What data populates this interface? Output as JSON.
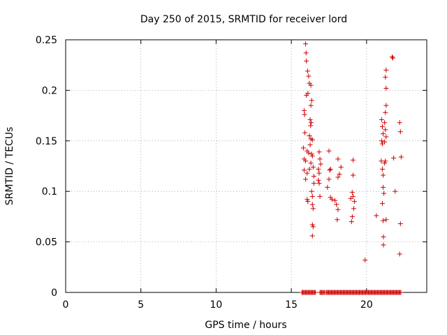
{
  "chart_data": {
    "type": "scatter",
    "title": "Day 250 of 2015, SRMTID for receiver lord",
    "xlabel": "GPS time / hours",
    "ylabel": "SRMTID / TECUs",
    "xlim": [
      0,
      24
    ],
    "ylim": [
      0,
      0.25
    ],
    "xticks": [
      0,
      5,
      10,
      15,
      20
    ],
    "xtick_labels": [
      "0",
      "5",
      "10",
      "15",
      "20"
    ],
    "yticks": [
      0,
      0.05,
      0.1,
      0.15,
      0.2,
      0.25
    ],
    "ytick_labels": [
      "0",
      "0.05",
      "0.1",
      "0.15",
      "0.2",
      "0.25"
    ],
    "grid": true,
    "marker": "+",
    "colors": {
      "series": "#cc0000",
      "axes": "#000000",
      "grid": "#a0a0a0"
    },
    "series": [
      {
        "name": "SRMTID",
        "points": [
          {
            "x": 15.95,
            "y": 0.246
          },
          {
            "x": 15.98,
            "y": 0.237
          },
          {
            "x": 16.0,
            "y": 0.229
          },
          {
            "x": 16.08,
            "y": 0.219
          },
          {
            "x": 16.15,
            "y": 0.214
          },
          {
            "x": 16.2,
            "y": 0.207
          },
          {
            "x": 16.3,
            "y": 0.205
          },
          {
            "x": 16.1,
            "y": 0.197
          },
          {
            "x": 16.0,
            "y": 0.195
          },
          {
            "x": 16.35,
            "y": 0.19
          },
          {
            "x": 16.3,
            "y": 0.185
          },
          {
            "x": 15.85,
            "y": 0.18
          },
          {
            "x": 15.88,
            "y": 0.176
          },
          {
            "x": 16.25,
            "y": 0.171
          },
          {
            "x": 16.32,
            "y": 0.168
          },
          {
            "x": 16.28,
            "y": 0.165
          },
          {
            "x": 15.9,
            "y": 0.158
          },
          {
            "x": 16.2,
            "y": 0.155
          },
          {
            "x": 16.3,
            "y": 0.152
          },
          {
            "x": 16.4,
            "y": 0.151
          },
          {
            "x": 16.25,
            "y": 0.146
          },
          {
            "x": 15.8,
            "y": 0.143
          },
          {
            "x": 16.05,
            "y": 0.14
          },
          {
            "x": 16.15,
            "y": 0.138
          },
          {
            "x": 16.35,
            "y": 0.137
          },
          {
            "x": 16.4,
            "y": 0.135
          },
          {
            "x": 15.85,
            "y": 0.132
          },
          {
            "x": 15.95,
            "y": 0.13
          },
          {
            "x": 16.3,
            "y": 0.128
          },
          {
            "x": 16.45,
            "y": 0.124
          },
          {
            "x": 16.2,
            "y": 0.122
          },
          {
            "x": 15.85,
            "y": 0.121
          },
          {
            "x": 16.05,
            "y": 0.118
          },
          {
            "x": 16.5,
            "y": 0.115
          },
          {
            "x": 15.95,
            "y": 0.112
          },
          {
            "x": 16.5,
            "y": 0.108
          },
          {
            "x": 16.35,
            "y": 0.1
          },
          {
            "x": 16.4,
            "y": 0.095
          },
          {
            "x": 16.05,
            "y": 0.092
          },
          {
            "x": 16.1,
            "y": 0.09
          },
          {
            "x": 16.4,
            "y": 0.087
          },
          {
            "x": 16.45,
            "y": 0.083
          },
          {
            "x": 16.4,
            "y": 0.067
          },
          {
            "x": 16.45,
            "y": 0.065
          },
          {
            "x": 16.4,
            "y": 0.056
          },
          {
            "x": 16.85,
            "y": 0.139
          },
          {
            "x": 16.9,
            "y": 0.132
          },
          {
            "x": 16.95,
            "y": 0.127
          },
          {
            "x": 16.8,
            "y": 0.122
          },
          {
            "x": 16.85,
            "y": 0.118
          },
          {
            "x": 16.8,
            "y": 0.111
          },
          {
            "x": 16.85,
            "y": 0.108
          },
          {
            "x": 16.9,
            "y": 0.095
          },
          {
            "x": 17.5,
            "y": 0.14
          },
          {
            "x": 17.6,
            "y": 0.122
          },
          {
            "x": 17.55,
            "y": 0.121
          },
          {
            "x": 17.5,
            "y": 0.112
          },
          {
            "x": 17.4,
            "y": 0.104
          },
          {
            "x": 17.6,
            "y": 0.094
          },
          {
            "x": 17.7,
            "y": 0.092
          },
          {
            "x": 18.1,
            "y": 0.132
          },
          {
            "x": 18.3,
            "y": 0.124
          },
          {
            "x": 18.2,
            "y": 0.117
          },
          {
            "x": 18.1,
            "y": 0.114
          },
          {
            "x": 17.9,
            "y": 0.091
          },
          {
            "x": 18.0,
            "y": 0.087
          },
          {
            "x": 18.1,
            "y": 0.082
          },
          {
            "x": 18.05,
            "y": 0.072
          },
          {
            "x": 19.1,
            "y": 0.131
          },
          {
            "x": 19.1,
            "y": 0.116
          },
          {
            "x": 19.05,
            "y": 0.099
          },
          {
            "x": 19.1,
            "y": 0.095
          },
          {
            "x": 18.95,
            "y": 0.093
          },
          {
            "x": 19.2,
            "y": 0.09
          },
          {
            "x": 19.15,
            "y": 0.083
          },
          {
            "x": 19.05,
            "y": 0.075
          },
          {
            "x": 19.0,
            "y": 0.07
          },
          {
            "x": 19.9,
            "y": 0.032
          },
          {
            "x": 20.65,
            "y": 0.076
          },
          {
            "x": 21.0,
            "y": 0.171
          },
          {
            "x": 21.05,
            "y": 0.164
          },
          {
            "x": 21.1,
            "y": 0.157
          },
          {
            "x": 21.0,
            "y": 0.15
          },
          {
            "x": 21.05,
            "y": 0.147
          },
          {
            "x": 20.98,
            "y": 0.13
          },
          {
            "x": 21.05,
            "y": 0.122
          },
          {
            "x": 21.1,
            "y": 0.116
          },
          {
            "x": 21.1,
            "y": 0.104
          },
          {
            "x": 21.15,
            "y": 0.098
          },
          {
            "x": 21.05,
            "y": 0.088
          },
          {
            "x": 21.1,
            "y": 0.071
          },
          {
            "x": 21.12,
            "y": 0.055
          },
          {
            "x": 21.12,
            "y": 0.047
          },
          {
            "x": 21.3,
            "y": 0.22
          },
          {
            "x": 21.25,
            "y": 0.213
          },
          {
            "x": 21.3,
            "y": 0.202
          },
          {
            "x": 21.3,
            "y": 0.185
          },
          {
            "x": 21.25,
            "y": 0.178
          },
          {
            "x": 21.2,
            "y": 0.168
          },
          {
            "x": 21.25,
            "y": 0.161
          },
          {
            "x": 21.3,
            "y": 0.154
          },
          {
            "x": 21.2,
            "y": 0.149
          },
          {
            "x": 21.25,
            "y": 0.13
          },
          {
            "x": 21.2,
            "y": 0.128
          },
          {
            "x": 21.3,
            "y": 0.072
          },
          {
            "x": 21.7,
            "y": 0.233
          },
          {
            "x": 21.75,
            "y": 0.232
          },
          {
            "x": 21.8,
            "y": 0.133
          },
          {
            "x": 21.9,
            "y": 0.1
          },
          {
            "x": 22.2,
            "y": 0.168
          },
          {
            "x": 22.25,
            "y": 0.159
          },
          {
            "x": 22.3,
            "y": 0.134
          },
          {
            "x": 22.25,
            "y": 0.068
          },
          {
            "x": 22.2,
            "y": 0.038
          }
        ]
      }
    ],
    "zero_band": {
      "y": 0,
      "x_ranges": [
        [
          15.7,
          16.6
        ],
        [
          16.9,
          17.2
        ],
        [
          17.3,
          22.3
        ]
      ]
    }
  }
}
